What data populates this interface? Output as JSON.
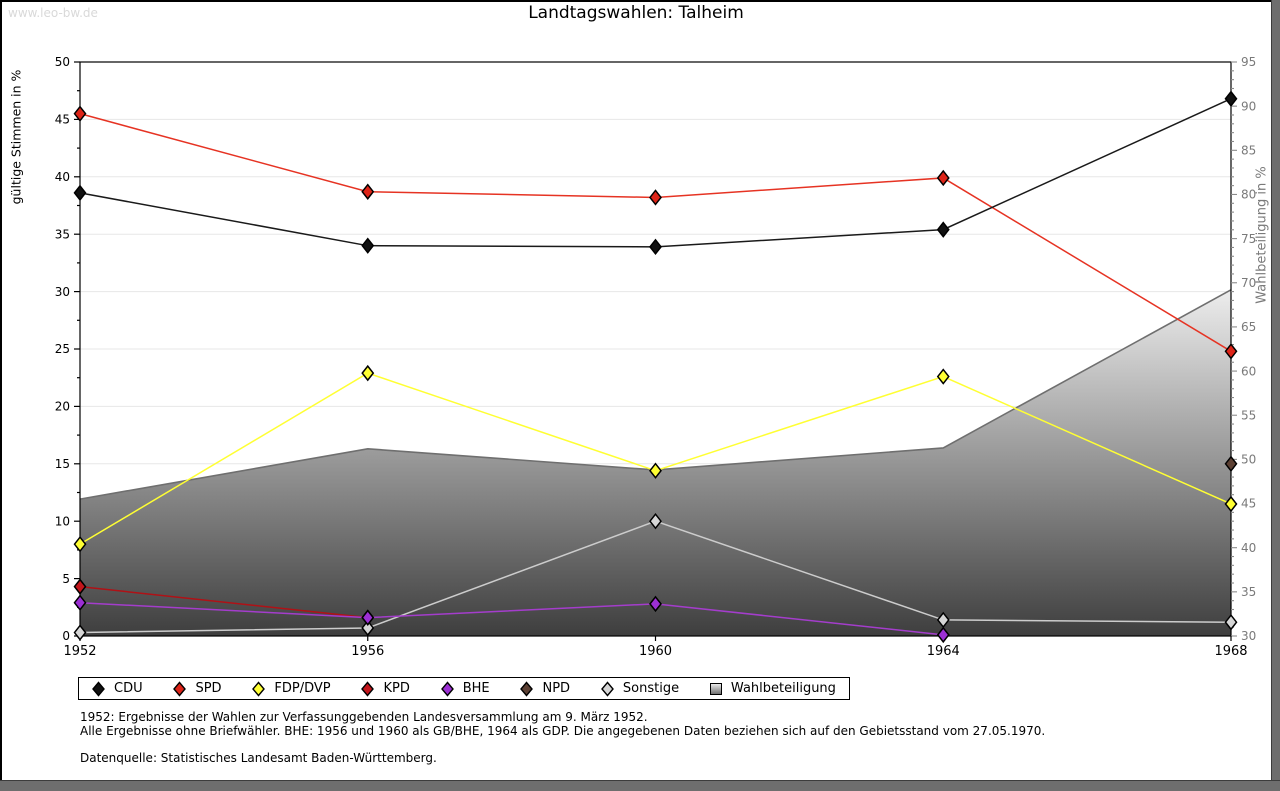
{
  "watermark": "www.leo-bw.de",
  "title": "Landtagswahlen: Talheim",
  "footnotes": {
    "line1": "1952: Ergebnisse der Wahlen zur Verfassunggebenden Landesversammlung am 9. März 1952.",
    "line2": "Alle Ergebnisse ohne Briefwähler. BHE: 1956 und 1960 als GB/BHE, 1964 als GDP. Die angegebenen Daten beziehen sich auf den Gebietsstand vom 27.05.1970.",
    "source": "Datenquelle: Statistisches Landesamt Baden-Württemberg."
  },
  "chart_data": {
    "type": "line",
    "title": "Landtagswahlen: Talheim",
    "x": [
      1952,
      1956,
      1960,
      1964,
      1968
    ],
    "left_axis": {
      "label": "gültige Stimmen in %",
      "min": 0,
      "max": 50,
      "step": 5,
      "minor_step": 2.5
    },
    "right_axis": {
      "label": "Wahlbeteiligung in %",
      "min": 30,
      "max": 95,
      "step": 5,
      "minor_step": 1
    },
    "grid": "horizontal-major",
    "legend_position": "bottom-box",
    "series": [
      {
        "name": "CDU",
        "color": "#111111",
        "line": "#1a1a1a",
        "values": [
          38.6,
          34.0,
          33.9,
          35.4,
          46.8
        ]
      },
      {
        "name": "SPD",
        "color": "#dd2418",
        "line": "#e63323",
        "values": [
          45.5,
          38.7,
          38.2,
          39.9,
          24.8
        ]
      },
      {
        "name": "FDP/DVP",
        "color": "#ffff33",
        "line": "#ffff33",
        "values": [
          8.0,
          22.9,
          14.4,
          22.6,
          11.5
        ]
      },
      {
        "name": "KPD",
        "color": "#c3161c",
        "line": "#b01116",
        "values": [
          4.3,
          1.6,
          null,
          null,
          null
        ]
      },
      {
        "name": "BHE",
        "color": "#9c2fd4",
        "line": "#a43dcc",
        "values": [
          2.9,
          1.6,
          2.8,
          0.1,
          null
        ]
      },
      {
        "name": "NPD",
        "color": "#5c4033",
        "line": "#5c4033",
        "values": [
          null,
          null,
          null,
          null,
          15.0
        ]
      },
      {
        "name": "Sonstige",
        "color": "#d6d6d6",
        "line": "#cccccc",
        "values": [
          0.3,
          0.7,
          10.0,
          1.4,
          1.2
        ]
      }
    ],
    "participation": {
      "name": "Wahlbeteiligung",
      "axis": "right",
      "values": [
        45.5,
        51.2,
        48.8,
        51.3,
        69.2
      ],
      "fill_top": "#ededed",
      "fill_bottom": "#3e3e3e",
      "edge": "#6f6f6f"
    },
    "draw_order": [
      6,
      3,
      4,
      2,
      1,
      0,
      5
    ],
    "colors": {
      "gridline": "#e7e7e7",
      "right_axis_text": "#7a7a7a",
      "axis": "#000000"
    }
  }
}
